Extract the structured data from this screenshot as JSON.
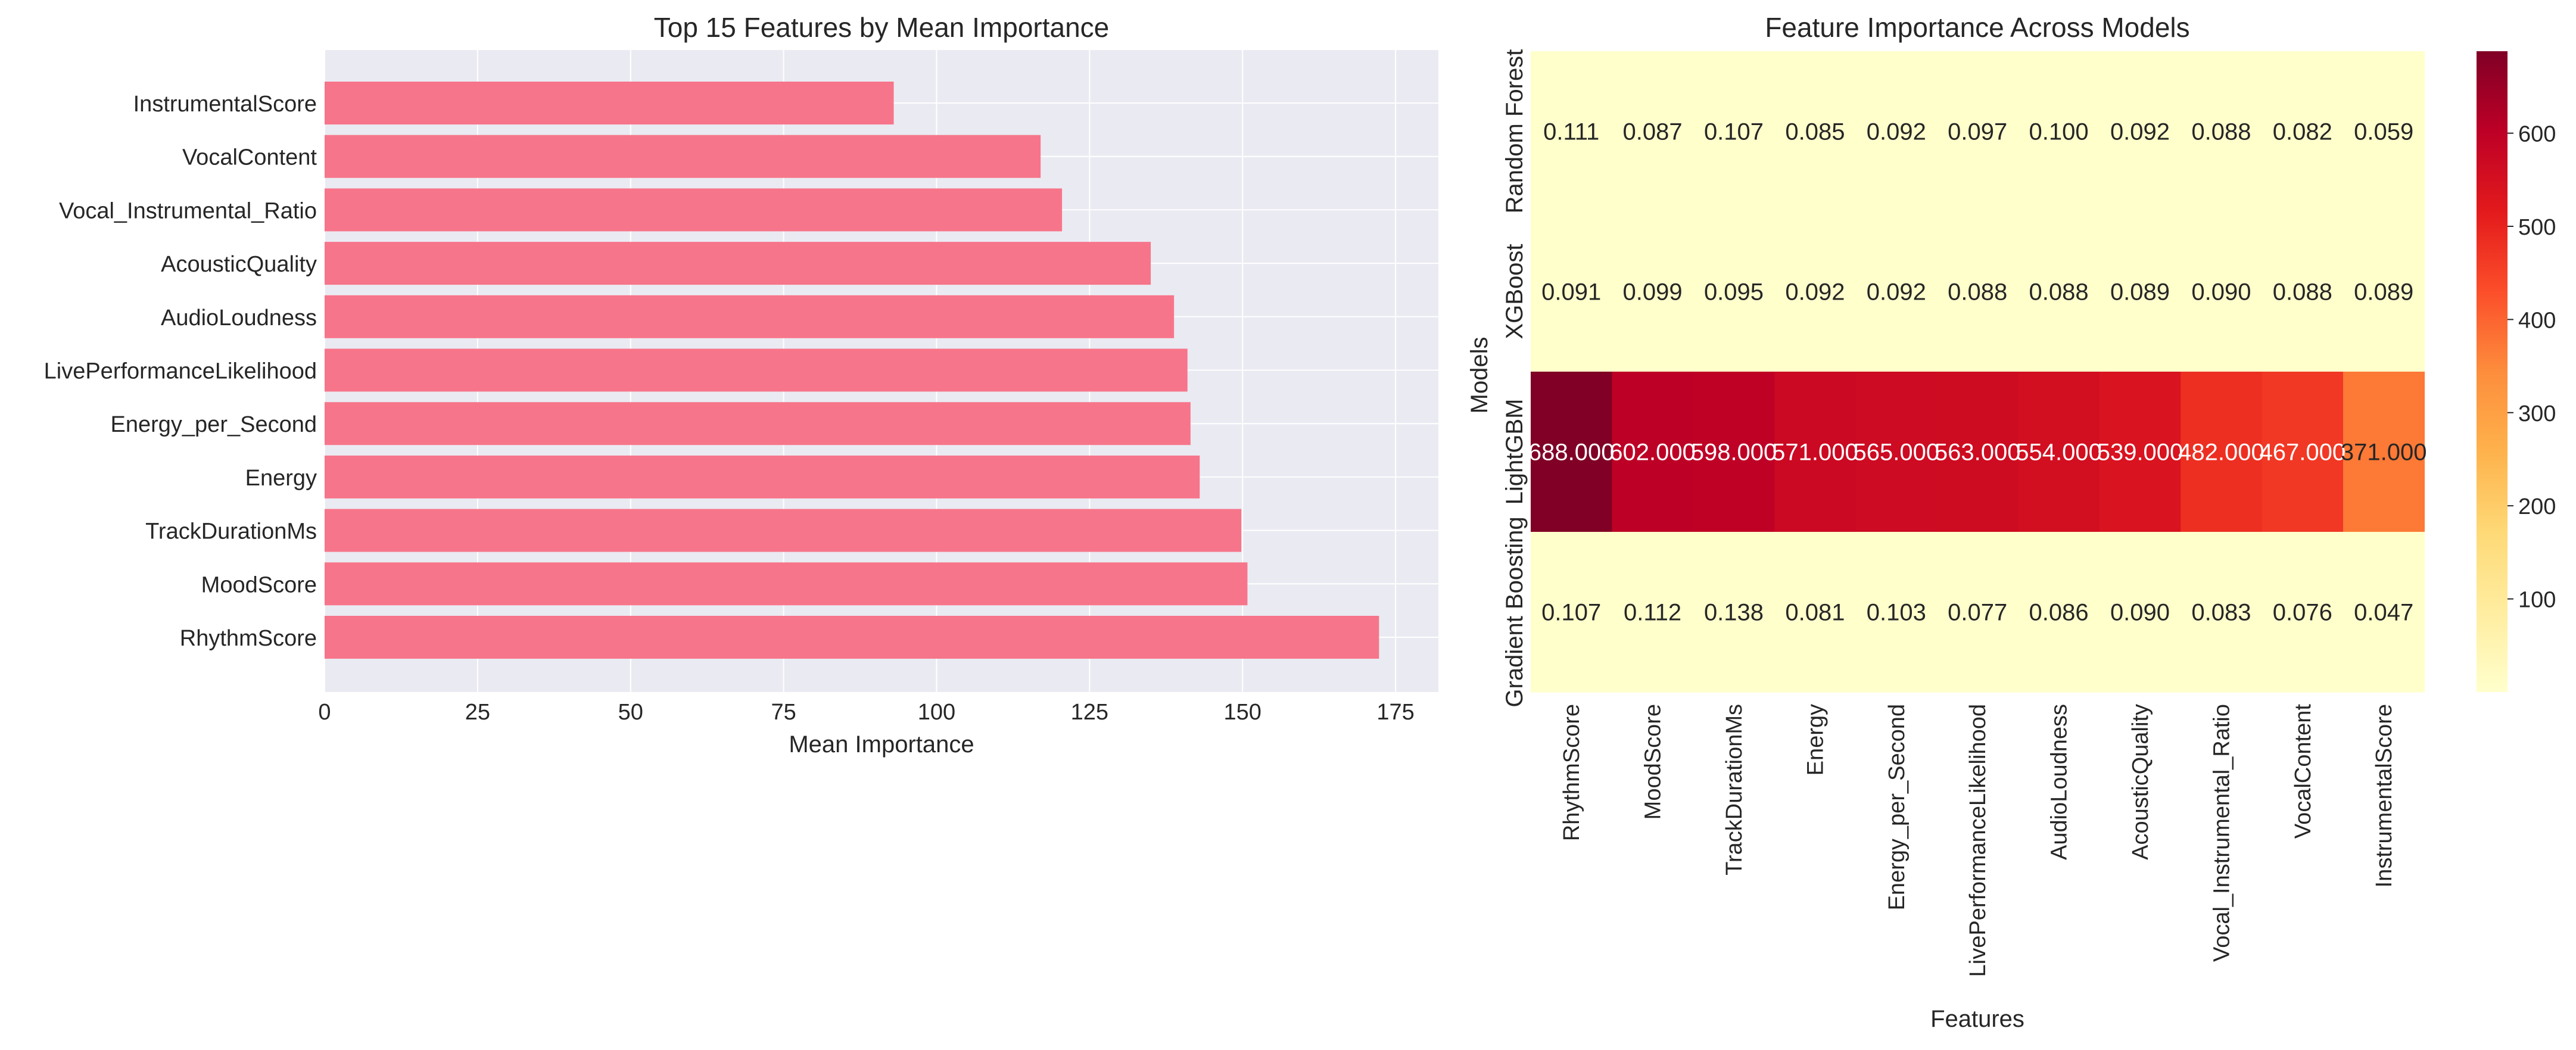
{
  "chart_data": [
    {
      "type": "bar",
      "orientation": "horizontal",
      "title": "Top 15 Features by Mean Importance",
      "xlabel": "Mean Importance",
      "ylabel": "",
      "categories": [
        "InstrumentalScore",
        "VocalContent",
        "Vocal_Instrumental_Ratio",
        "AcousticQuality",
        "AudioLoudness",
        "LivePerformanceLikelihood",
        "Energy_per_Second",
        "Energy",
        "TrackDurationMs",
        "MoodScore",
        "RhythmScore"
      ],
      "values": [
        93,
        117,
        120.5,
        135,
        138.8,
        141,
        141.5,
        143,
        149.8,
        150.8,
        172.3
      ],
      "xlim": [
        0,
        182
      ],
      "xticks": [
        0,
        25,
        50,
        75,
        100,
        125,
        150,
        175
      ],
      "grid": true,
      "colors": {
        "bar": "#f7758a",
        "plot_bg": "#eaeaf2",
        "grid": "#ffffff"
      }
    },
    {
      "type": "heatmap",
      "title": "Feature Importance Across Models",
      "xlabel": "Features",
      "ylabel": "Models",
      "columns": [
        "RhythmScore",
        "MoodScore",
        "TrackDurationMs",
        "Energy",
        "Energy_per_Second",
        "LivePerformanceLikelihood",
        "AudioLoudness",
        "AcousticQuality",
        "Vocal_Instrumental_Ratio",
        "VocalContent",
        "InstrumentalScore"
      ],
      "rows": [
        "Random Forest",
        "XGBoost",
        "LightGBM",
        "Gradient Boosting"
      ],
      "values": [
        [
          0.111,
          0.087,
          0.107,
          0.085,
          0.092,
          0.097,
          0.1,
          0.092,
          0.088,
          0.082,
          0.059
        ],
        [
          0.091,
          0.099,
          0.095,
          0.092,
          0.092,
          0.088,
          0.088,
          0.089,
          0.09,
          0.088,
          0.089
        ],
        [
          688.0,
          602.0,
          598.0,
          571.0,
          565.0,
          563.0,
          554.0,
          539.0,
          482.0,
          467.0,
          371.0
        ],
        [
          0.107,
          0.112,
          0.138,
          0.081,
          0.103,
          0.077,
          0.086,
          0.09,
          0.083,
          0.076,
          0.047
        ]
      ],
      "value_format": "3 decimals",
      "colormap": "YlOrRd",
      "colorbar": {
        "min": 0,
        "max": 688,
        "ticks": [
          100,
          200,
          300,
          400,
          500,
          600
        ]
      },
      "legend": "colorbar-right"
    }
  ]
}
